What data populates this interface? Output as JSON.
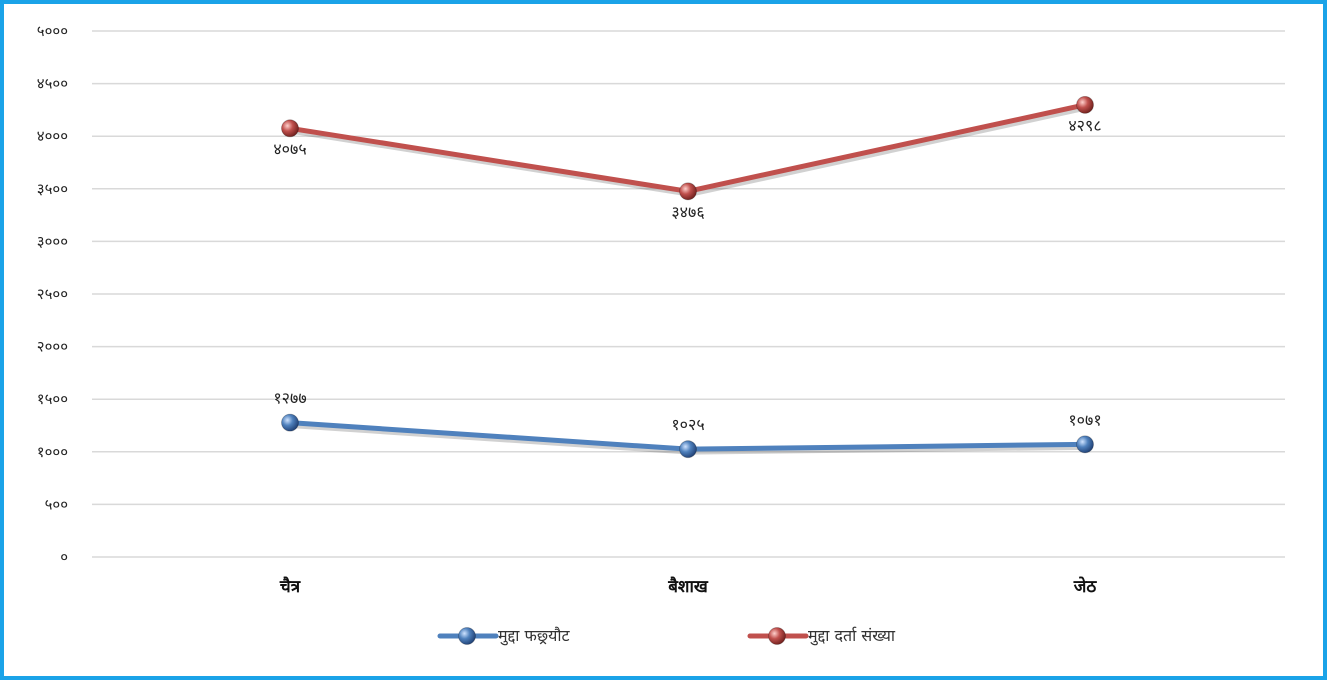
{
  "chart_data": {
    "type": "line",
    "categories": [
      "चैत्र",
      "बैशाख",
      "जेठ"
    ],
    "yticks": [
      "०",
      "५००",
      "१०००",
      "१५००",
      "२०००",
      "२५००",
      "३०००",
      "३५००",
      "४०००",
      "४५००",
      "५०००"
    ],
    "ylim": [
      0,
      5000
    ],
    "grid": true,
    "legend": "bottom",
    "series": [
      {
        "name": "मुद्दा फछ्र्यौट",
        "values": [
          1277,
          1025,
          1071
        ],
        "labels": [
          "१२७७",
          "१०२५",
          "१०७१"
        ],
        "color": "#4f81bd",
        "label_position": "above"
      },
      {
        "name": "मुद्दा दर्ता संख्या",
        "values": [
          4075,
          3476,
          4298
        ],
        "labels": [
          "४०७५",
          "३४७६",
          "४२९८"
        ],
        "color": "#c0504d",
        "label_position": "below"
      }
    ]
  },
  "colors": {
    "border": "#1aa3e8",
    "grid": "#d9d9d9"
  }
}
